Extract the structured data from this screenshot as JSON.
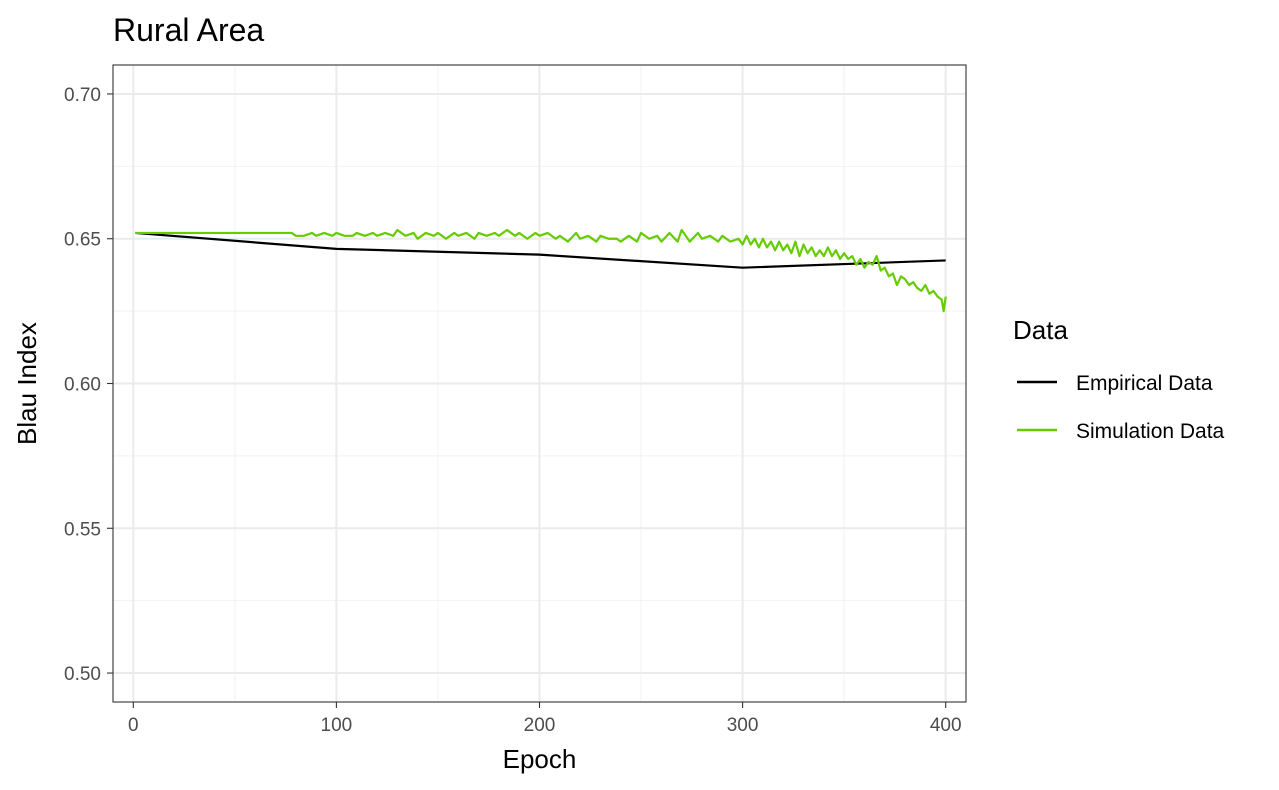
{
  "chart_data": {
    "type": "line",
    "title": "Rural Area",
    "xlabel": "Epoch",
    "ylabel": "Blau Index",
    "xlim": [
      -10,
      410
    ],
    "ylim": [
      0.49,
      0.71
    ],
    "x_ticks": [
      "0",
      "100",
      "200",
      "300",
      "400"
    ],
    "y_ticks": [
      "0.50",
      "0.55",
      "0.60",
      "0.65",
      "0.70"
    ],
    "grid": true,
    "legend": {
      "title": "Data",
      "placement": "right"
    },
    "series": [
      {
        "name": "Empirical Data",
        "color": "#000000",
        "x": [
          1,
          100,
          200,
          300,
          400
        ],
        "y": [
          0.652,
          0.6465,
          0.6445,
          0.64,
          0.6425
        ]
      },
      {
        "name": "Simulation Data",
        "color": "#66CC00",
        "x": [
          1,
          20,
          40,
          60,
          78,
          80,
          84,
          88,
          90,
          94,
          98,
          100,
          104,
          108,
          110,
          114,
          118,
          120,
          124,
          128,
          130,
          134,
          138,
          140,
          144,
          148,
          150,
          154,
          158,
          160,
          164,
          168,
          170,
          174,
          178,
          180,
          184,
          188,
          190,
          194,
          198,
          200,
          204,
          208,
          210,
          214,
          218,
          220,
          224,
          228,
          230,
          234,
          238,
          240,
          244,
          248,
          250,
          254,
          258,
          260,
          264,
          268,
          270,
          274,
          278,
          280,
          284,
          288,
          290,
          294,
          298,
          300,
          302,
          304,
          306,
          308,
          310,
          312,
          314,
          316,
          318,
          320,
          322,
          324,
          326,
          328,
          330,
          332,
          334,
          336,
          338,
          340,
          342,
          344,
          346,
          348,
          350,
          352,
          354,
          356,
          358,
          360,
          362,
          364,
          366,
          368,
          370,
          372,
          374,
          376,
          378,
          380,
          382,
          384,
          386,
          388,
          390,
          392,
          394,
          396,
          398,
          399,
          400
        ],
        "y": [
          0.652,
          0.652,
          0.652,
          0.652,
          0.652,
          0.651,
          0.651,
          0.652,
          0.651,
          0.652,
          0.651,
          0.652,
          0.651,
          0.651,
          0.652,
          0.651,
          0.652,
          0.651,
          0.652,
          0.651,
          0.653,
          0.651,
          0.652,
          0.65,
          0.652,
          0.651,
          0.652,
          0.65,
          0.652,
          0.651,
          0.652,
          0.65,
          0.652,
          0.651,
          0.652,
          0.651,
          0.653,
          0.651,
          0.652,
          0.65,
          0.652,
          0.651,
          0.652,
          0.65,
          0.651,
          0.649,
          0.652,
          0.65,
          0.651,
          0.649,
          0.651,
          0.65,
          0.65,
          0.649,
          0.651,
          0.649,
          0.652,
          0.65,
          0.651,
          0.649,
          0.652,
          0.649,
          0.653,
          0.649,
          0.652,
          0.65,
          0.651,
          0.649,
          0.651,
          0.649,
          0.65,
          0.648,
          0.651,
          0.648,
          0.65,
          0.647,
          0.65,
          0.647,
          0.649,
          0.646,
          0.649,
          0.646,
          0.648,
          0.645,
          0.649,
          0.644,
          0.648,
          0.645,
          0.647,
          0.644,
          0.646,
          0.644,
          0.647,
          0.644,
          0.646,
          0.643,
          0.645,
          0.643,
          0.644,
          0.641,
          0.643,
          0.64,
          0.642,
          0.641,
          0.644,
          0.639,
          0.64,
          0.637,
          0.638,
          0.634,
          0.637,
          0.636,
          0.634,
          0.635,
          0.633,
          0.632,
          0.634,
          0.631,
          0.632,
          0.63,
          0.629,
          0.625,
          0.63
        ]
      }
    ]
  }
}
